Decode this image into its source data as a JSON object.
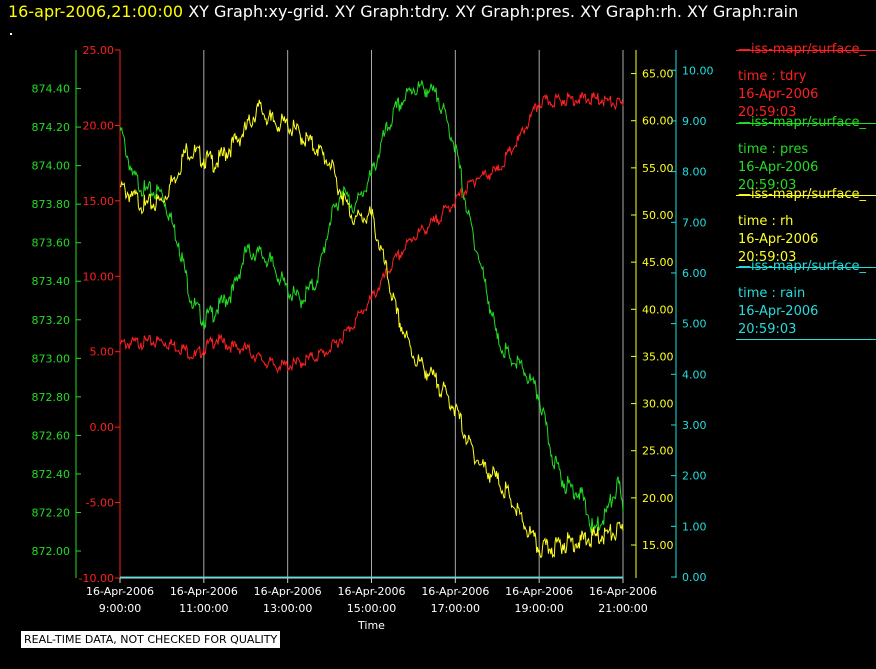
{
  "title": {
    "timestamp": "16-apr-2006,21:00:00",
    "graphs": "XY Graph:xy-grid.  XY Graph:tdry.  XY Graph:pres.  XY Graph:rh.  XY Graph:rain"
  },
  "legend": [
    {
      "source": "—iss-mapr/surface_",
      "var": "time : tdry",
      "date": "16-Apr-2006",
      "time": "20:59:03",
      "color": "#ff2020"
    },
    {
      "source": "—iss-mapr/surface_",
      "var": "time : pres",
      "date": "16-Apr-2006",
      "time": "20:59:03",
      "color": "#22dd22"
    },
    {
      "source": "—iss-mapr/surface_",
      "var": "time : rh",
      "date": "16-Apr-2006",
      "time": "20:59:03",
      "color": "#ffff22"
    },
    {
      "source": "—iss-mapr/surface_",
      "var": "time : rain",
      "date": "16-Apr-2006",
      "time": "20:59:03",
      "color": "#22dddd"
    }
  ],
  "footer": "REAL-TIME DATA, NOT CHECKED FOR QUALITY",
  "chart_data": {
    "type": "line",
    "xlabel": "Time",
    "x_ticks": [
      [
        "16-Apr-2006",
        "9:00:00"
      ],
      [
        "16-Apr-2006",
        "11:00:00"
      ],
      [
        "16-Apr-2006",
        "13:00:00"
      ],
      [
        "16-Apr-2006",
        "15:00:00"
      ],
      [
        "16-Apr-2006",
        "17:00:00"
      ],
      [
        "16-Apr-2006",
        "19:00:00"
      ],
      [
        "16-Apr-2006",
        "21:00:00"
      ]
    ],
    "xlim": [
      "16-Apr-2006 9:00:00",
      "16-Apr-2006 21:00:00"
    ],
    "grid": "vertical lines at each time tick",
    "axes": [
      {
        "id": "pres",
        "side": "left-outer",
        "color": "#22dd22",
        "ylim": [
          871.86,
          874.6
        ],
        "ticks": [
          "874.40",
          "874.20",
          "874.00",
          "873.80",
          "873.60",
          "873.40",
          "873.20",
          "873.00",
          "872.80",
          "872.60",
          "872.40",
          "872.20",
          "872.00"
        ]
      },
      {
        "id": "tdry",
        "side": "left-inner",
        "color": "#ff2020",
        "ylim": [
          -10.0,
          25.0
        ],
        "ticks": [
          "25.00",
          "20.00",
          "15.00",
          "10.00",
          "5.00",
          "0.00",
          "-5.00",
          "-10.00"
        ]
      },
      {
        "id": "rh",
        "side": "right-inner",
        "color": "#ffff22",
        "ylim": [
          11.5,
          67.5
        ],
        "ticks": [
          "65.00",
          "60.00",
          "55.00",
          "50.00",
          "45.00",
          "40.00",
          "35.00",
          "30.00",
          "25.00",
          "20.00",
          "15.00"
        ]
      },
      {
        "id": "rain",
        "side": "right-outer",
        "color": "#22dddd",
        "ylim": [
          -0.02,
          10.4
        ],
        "ticks": [
          "10.00",
          "9.00",
          "8.00",
          "7.00",
          "6.00",
          "5.00",
          "4.00",
          "3.00",
          "2.00",
          "1.00",
          "0.00"
        ]
      }
    ],
    "x_hours": [
      9,
      10,
      11,
      12,
      13,
      14,
      15,
      16,
      17,
      18,
      19,
      20,
      21
    ],
    "series": [
      {
        "name": "tdry",
        "axis": "tdry",
        "color": "#ff2020",
        "points": [
          [
            9.0,
            5.5
          ],
          [
            9.5,
            5.6
          ],
          [
            10.0,
            5.7
          ],
          [
            10.5,
            5.2
          ],
          [
            10.8,
            4.7
          ],
          [
            11.0,
            5.2
          ],
          [
            11.3,
            5.8
          ],
          [
            11.7,
            5.3
          ],
          [
            12.0,
            5.2
          ],
          [
            12.4,
            4.4
          ],
          [
            12.8,
            4.0
          ],
          [
            13.2,
            4.2
          ],
          [
            13.6,
            4.6
          ],
          [
            14.0,
            5.1
          ],
          [
            14.5,
            6.6
          ],
          [
            15.0,
            8.5
          ],
          [
            15.5,
            10.8
          ],
          [
            16.0,
            12.6
          ],
          [
            16.5,
            13.6
          ],
          [
            17.0,
            15.0
          ],
          [
            17.5,
            16.5
          ],
          [
            18.0,
            17.0
          ],
          [
            18.5,
            19.0
          ],
          [
            19.0,
            21.5
          ],
          [
            19.5,
            21.7
          ],
          [
            20.0,
            21.8
          ],
          [
            20.5,
            21.7
          ],
          [
            21.0,
            21.3
          ]
        ]
      },
      {
        "name": "pres",
        "axis": "pres",
        "color": "#22dd22",
        "points": [
          [
            9.0,
            874.2
          ],
          [
            9.3,
            873.95
          ],
          [
            9.6,
            873.87
          ],
          [
            10.0,
            873.86
          ],
          [
            10.4,
            873.6
          ],
          [
            10.7,
            873.3
          ],
          [
            11.0,
            873.2
          ],
          [
            11.3,
            873.25
          ],
          [
            11.7,
            873.35
          ],
          [
            12.0,
            873.55
          ],
          [
            12.3,
            873.55
          ],
          [
            12.6,
            873.5
          ],
          [
            13.0,
            873.35
          ],
          [
            13.3,
            873.3
          ],
          [
            13.7,
            873.4
          ],
          [
            14.0,
            873.7
          ],
          [
            14.3,
            873.87
          ],
          [
            14.6,
            873.78
          ],
          [
            15.0,
            873.95
          ],
          [
            15.3,
            874.15
          ],
          [
            15.6,
            874.3
          ],
          [
            16.0,
            874.4
          ],
          [
            16.3,
            874.4
          ],
          [
            16.6,
            874.35
          ],
          [
            17.0,
            874.1
          ],
          [
            17.3,
            873.75
          ],
          [
            17.7,
            873.4
          ],
          [
            18.0,
            873.1
          ],
          [
            18.3,
            873.0
          ],
          [
            18.6,
            872.95
          ],
          [
            19.0,
            872.8
          ],
          [
            19.3,
            872.5
          ],
          [
            19.6,
            872.35
          ],
          [
            20.0,
            872.3
          ],
          [
            20.3,
            872.1
          ],
          [
            20.6,
            872.2
          ],
          [
            20.9,
            872.35
          ],
          [
            21.0,
            872.2
          ]
        ]
      },
      {
        "name": "rh",
        "axis": "rh",
        "color": "#ffff22",
        "points": [
          [
            9.0,
            53.0
          ],
          [
            9.3,
            52.0
          ],
          [
            9.6,
            51.0
          ],
          [
            10.0,
            51.5
          ],
          [
            10.3,
            54.0
          ],
          [
            10.6,
            57.0
          ],
          [
            11.0,
            56.0
          ],
          [
            11.3,
            55.5
          ],
          [
            11.6,
            57.0
          ],
          [
            12.0,
            59.0
          ],
          [
            12.3,
            61.5
          ],
          [
            12.6,
            60.0
          ],
          [
            13.0,
            59.5
          ],
          [
            13.3,
            58.5
          ],
          [
            13.7,
            57.0
          ],
          [
            14.0,
            55.5
          ],
          [
            14.3,
            52.0
          ],
          [
            14.6,
            49.5
          ],
          [
            15.0,
            50.0
          ],
          [
            15.3,
            45.0
          ],
          [
            15.6,
            39.5
          ],
          [
            16.0,
            35.0
          ],
          [
            16.3,
            33.5
          ],
          [
            16.6,
            32.0
          ],
          [
            17.0,
            29.5
          ],
          [
            17.3,
            26.0
          ],
          [
            17.6,
            23.5
          ],
          [
            18.0,
            22.0
          ],
          [
            18.3,
            20.0
          ],
          [
            18.6,
            17.5
          ],
          [
            19.0,
            14.5
          ],
          [
            19.3,
            14.7
          ],
          [
            19.6,
            15.2
          ],
          [
            20.0,
            15.5
          ],
          [
            20.5,
            16.0
          ],
          [
            21.0,
            16.5
          ]
        ]
      },
      {
        "name": "rain",
        "axis": "rain",
        "color": "#22dddd",
        "points": [
          [
            9.0,
            0.0
          ],
          [
            21.0,
            0.0
          ]
        ]
      }
    ]
  }
}
